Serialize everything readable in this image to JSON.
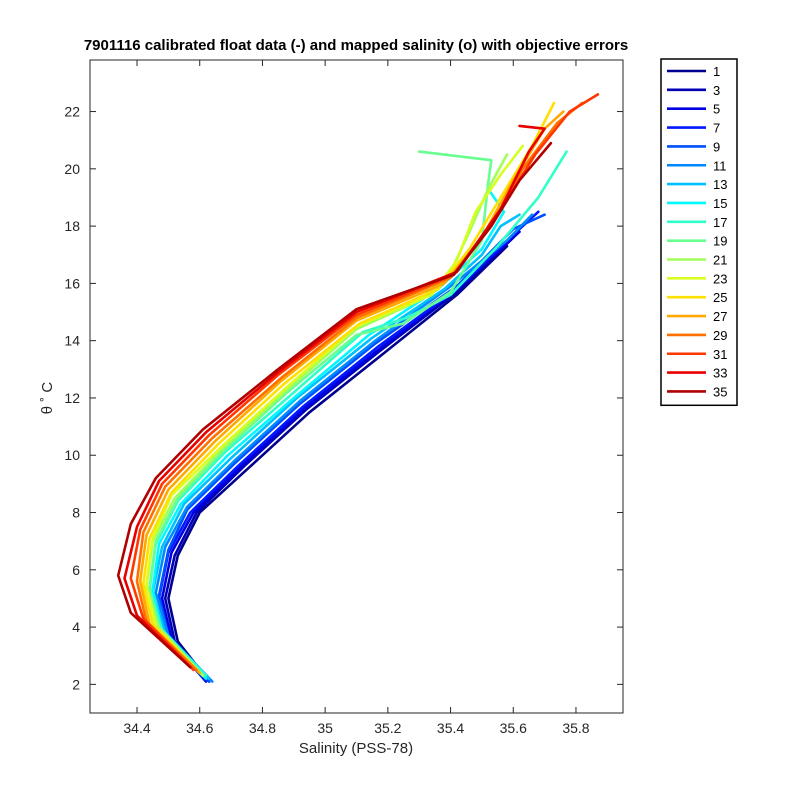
{
  "chart_data": {
    "type": "line",
    "title": "7901116 calibrated float data (-) and mapped salinity (o) with objective errors",
    "xlabel": "Salinity (PSS-78)",
    "ylabel": "θ ˚ C",
    "xlim": [
      34.25,
      35.95
    ],
    "ylim": [
      1,
      23.8
    ],
    "xticks": [
      "34.4",
      "34.6",
      "34.8",
      "35",
      "35.2",
      "35.4",
      "35.6",
      "35.8"
    ],
    "yticks": [
      "2",
      "4",
      "6",
      "8",
      "10",
      "12",
      "14",
      "16",
      "18",
      "20",
      "22"
    ],
    "legend_position": "outside-right",
    "grid": false,
    "series": [
      {
        "name": "1",
        "color": "#00008f",
        "points": [
          [
            34.63,
            2.1
          ],
          [
            34.53,
            3.5
          ],
          [
            34.5,
            5.0
          ],
          [
            34.53,
            6.5
          ],
          [
            34.6,
            8.0
          ],
          [
            34.75,
            9.5
          ],
          [
            34.95,
            11.5
          ],
          [
            35.18,
            13.5
          ],
          [
            35.42,
            15.6
          ],
          [
            35.58,
            17.3
          ]
        ]
      },
      {
        "name": "3",
        "color": "#0000b8",
        "points": [
          [
            34.63,
            2.1
          ],
          [
            34.52,
            3.5
          ],
          [
            34.49,
            5.0
          ],
          [
            34.52,
            6.5
          ],
          [
            34.59,
            8.0
          ],
          [
            34.74,
            9.6
          ],
          [
            34.94,
            11.6
          ],
          [
            35.17,
            13.6
          ],
          [
            35.42,
            15.7
          ],
          [
            35.6,
            17.6
          ]
        ]
      },
      {
        "name": "5",
        "color": "#0000e0",
        "points": [
          [
            34.62,
            2.1
          ],
          [
            34.51,
            3.6
          ],
          [
            34.48,
            5.0
          ],
          [
            34.51,
            6.6
          ],
          [
            34.58,
            8.0
          ],
          [
            34.73,
            9.6
          ],
          [
            34.93,
            11.6
          ],
          [
            35.16,
            13.6
          ],
          [
            35.41,
            15.7
          ],
          [
            35.62,
            17.8
          ]
        ]
      },
      {
        "name": "7",
        "color": "#0018ff",
        "points": [
          [
            34.62,
            2.1
          ],
          [
            34.5,
            3.6
          ],
          [
            34.47,
            5.0
          ],
          [
            34.5,
            6.6
          ],
          [
            34.57,
            8.0
          ],
          [
            34.72,
            9.6
          ],
          [
            34.93,
            11.7
          ],
          [
            35.17,
            13.8
          ],
          [
            35.42,
            15.8
          ],
          [
            35.62,
            17.9
          ],
          [
            35.68,
            18.5
          ]
        ]
      },
      {
        "name": "9",
        "color": "#0050ff",
        "points": [
          [
            34.63,
            2.1
          ],
          [
            34.5,
            3.7
          ],
          [
            34.47,
            5.1
          ],
          [
            34.5,
            6.7
          ],
          [
            34.56,
            8.1
          ],
          [
            34.71,
            9.7
          ],
          [
            34.92,
            11.8
          ],
          [
            35.16,
            13.9
          ],
          [
            35.42,
            15.9
          ],
          [
            35.6,
            17.9
          ],
          [
            35.7,
            18.4
          ]
        ]
      },
      {
        "name": "11",
        "color": "#0088ff",
        "points": [
          [
            34.64,
            2.1
          ],
          [
            34.5,
            3.7
          ],
          [
            34.46,
            5.2
          ],
          [
            34.49,
            6.8
          ],
          [
            34.56,
            8.2
          ],
          [
            34.71,
            9.8
          ],
          [
            34.92,
            11.9
          ],
          [
            35.16,
            14.0
          ],
          [
            35.4,
            15.9
          ],
          [
            35.58,
            17.5
          ],
          [
            35.66,
            18.4
          ]
        ]
      },
      {
        "name": "13",
        "color": "#00c0ff",
        "points": [
          [
            34.63,
            2.2
          ],
          [
            34.49,
            3.8
          ],
          [
            34.45,
            5.2
          ],
          [
            34.48,
            6.8
          ],
          [
            34.55,
            8.3
          ],
          [
            34.7,
            9.9
          ],
          [
            34.91,
            12.0
          ],
          [
            35.15,
            14.1
          ],
          [
            35.38,
            15.8
          ],
          [
            35.5,
            17.0
          ],
          [
            35.56,
            18.0
          ],
          [
            35.62,
            18.4
          ]
        ]
      },
      {
        "name": "15",
        "color": "#00f8ff",
        "points": [
          [
            34.62,
            2.2
          ],
          [
            34.48,
            3.8
          ],
          [
            34.45,
            5.3
          ],
          [
            34.47,
            6.9
          ],
          [
            34.54,
            8.3
          ],
          [
            34.69,
            10.0
          ],
          [
            34.9,
            12.0
          ],
          [
            35.14,
            14.2
          ],
          [
            35.36,
            15.8
          ],
          [
            35.5,
            17.2
          ],
          [
            35.57,
            18.5
          ],
          [
            35.52,
            19.3
          ]
        ]
      },
      {
        "name": "17",
        "color": "#30ffc8",
        "points": [
          [
            34.62,
            2.3
          ],
          [
            34.48,
            3.9
          ],
          [
            34.44,
            5.3
          ],
          [
            34.46,
            6.9
          ],
          [
            34.53,
            8.4
          ],
          [
            34.68,
            10.1
          ],
          [
            34.89,
            12.1
          ],
          [
            35.12,
            14.3
          ],
          [
            35.26,
            14.8
          ],
          [
            35.4,
            15.6
          ],
          [
            35.55,
            17.3
          ],
          [
            35.68,
            19.0
          ],
          [
            35.77,
            20.6
          ]
        ]
      },
      {
        "name": "19",
        "color": "#68ff90",
        "points": [
          [
            34.61,
            2.3
          ],
          [
            34.47,
            3.9
          ],
          [
            34.44,
            5.4
          ],
          [
            34.46,
            7.0
          ],
          [
            34.53,
            8.5
          ],
          [
            34.68,
            10.2
          ],
          [
            34.88,
            12.2
          ],
          [
            35.1,
            14.2
          ],
          [
            35.25,
            14.6
          ],
          [
            35.4,
            15.7
          ],
          [
            35.5,
            17.5
          ],
          [
            35.52,
            19.5
          ],
          [
            35.53,
            20.3
          ],
          [
            35.3,
            20.6
          ]
        ]
      },
      {
        "name": "21",
        "color": "#a0ff58",
        "points": [
          [
            34.61,
            2.3
          ],
          [
            34.47,
            4.0
          ],
          [
            34.43,
            5.4
          ],
          [
            34.45,
            7.0
          ],
          [
            34.52,
            8.5
          ],
          [
            34.67,
            10.2
          ],
          [
            34.88,
            12.3
          ],
          [
            35.1,
            14.4
          ],
          [
            35.3,
            15.4
          ],
          [
            35.4,
            16.4
          ],
          [
            35.46,
            17.8
          ],
          [
            35.52,
            19.3
          ],
          [
            35.58,
            20.5
          ]
        ]
      },
      {
        "name": "23",
        "color": "#d8ff20",
        "points": [
          [
            34.6,
            2.4
          ],
          [
            34.46,
            4.0
          ],
          [
            34.43,
            5.5
          ],
          [
            34.45,
            7.1
          ],
          [
            34.51,
            8.6
          ],
          [
            34.67,
            10.3
          ],
          [
            34.88,
            12.4
          ],
          [
            35.1,
            14.5
          ],
          [
            35.34,
            15.6
          ],
          [
            35.42,
            16.8
          ],
          [
            35.48,
            18.5
          ],
          [
            35.56,
            19.8
          ],
          [
            35.63,
            20.8
          ]
        ]
      },
      {
        "name": "25",
        "color": "#ffe000",
        "points": [
          [
            34.6,
            2.4
          ],
          [
            34.45,
            4.1
          ],
          [
            34.42,
            5.5
          ],
          [
            34.44,
            7.1
          ],
          [
            34.51,
            8.7
          ],
          [
            34.66,
            10.4
          ],
          [
            34.87,
            12.5
          ],
          [
            35.11,
            14.6
          ],
          [
            35.36,
            15.8
          ],
          [
            35.46,
            17.2
          ],
          [
            35.56,
            19.0
          ],
          [
            35.66,
            20.8
          ],
          [
            35.73,
            22.3
          ]
        ]
      },
      {
        "name": "27",
        "color": "#ffa800",
        "points": [
          [
            34.6,
            2.4
          ],
          [
            34.44,
            4.1
          ],
          [
            34.41,
            5.6
          ],
          [
            34.43,
            7.2
          ],
          [
            34.5,
            8.8
          ],
          [
            34.65,
            10.5
          ],
          [
            34.86,
            12.6
          ],
          [
            35.1,
            14.7
          ],
          [
            35.38,
            16.0
          ],
          [
            35.5,
            17.6
          ],
          [
            35.6,
            19.6
          ],
          [
            35.7,
            21.4
          ],
          [
            35.76,
            22.0
          ]
        ]
      },
      {
        "name": "29",
        "color": "#ff7000",
        "points": [
          [
            34.59,
            2.5
          ],
          [
            34.43,
            4.2
          ],
          [
            34.4,
            5.6
          ],
          [
            34.42,
            7.3
          ],
          [
            34.49,
            8.9
          ],
          [
            34.64,
            10.6
          ],
          [
            34.86,
            12.7
          ],
          [
            35.1,
            14.8
          ],
          [
            35.4,
            16.2
          ],
          [
            35.53,
            18.0
          ],
          [
            35.63,
            20.0
          ],
          [
            35.74,
            21.6
          ],
          [
            35.82,
            22.3
          ]
        ]
      },
      {
        "name": "31",
        "color": "#ff3800",
        "points": [
          [
            34.58,
            2.5
          ],
          [
            34.42,
            4.3
          ],
          [
            34.38,
            5.7
          ],
          [
            34.41,
            7.4
          ],
          [
            34.48,
            9.0
          ],
          [
            34.63,
            10.7
          ],
          [
            34.85,
            12.8
          ],
          [
            35.1,
            14.9
          ],
          [
            35.41,
            16.3
          ],
          [
            35.55,
            18.4
          ],
          [
            35.67,
            20.5
          ],
          [
            35.78,
            22.0
          ],
          [
            35.87,
            22.6
          ]
        ]
      },
      {
        "name": "33",
        "color": "#e80000",
        "points": [
          [
            34.57,
            2.6
          ],
          [
            34.4,
            4.4
          ],
          [
            34.36,
            5.7
          ],
          [
            34.4,
            7.5
          ],
          [
            34.47,
            9.1
          ],
          [
            34.62,
            10.8
          ],
          [
            34.85,
            12.9
          ],
          [
            35.1,
            15.0
          ],
          [
            35.42,
            16.4
          ],
          [
            35.56,
            18.6
          ],
          [
            35.65,
            20.6
          ],
          [
            35.7,
            21.4
          ],
          [
            35.62,
            21.5
          ]
        ]
      },
      {
        "name": "35",
        "color": "#b00000",
        "points": [
          [
            34.57,
            2.6
          ],
          [
            34.38,
            4.5
          ],
          [
            34.34,
            5.8
          ],
          [
            34.38,
            7.6
          ],
          [
            34.46,
            9.2
          ],
          [
            34.61,
            10.9
          ],
          [
            34.85,
            13.0
          ],
          [
            35.1,
            15.1
          ],
          [
            35.41,
            16.3
          ],
          [
            35.53,
            18.0
          ],
          [
            35.62,
            19.6
          ],
          [
            35.72,
            20.9
          ]
        ]
      }
    ]
  }
}
